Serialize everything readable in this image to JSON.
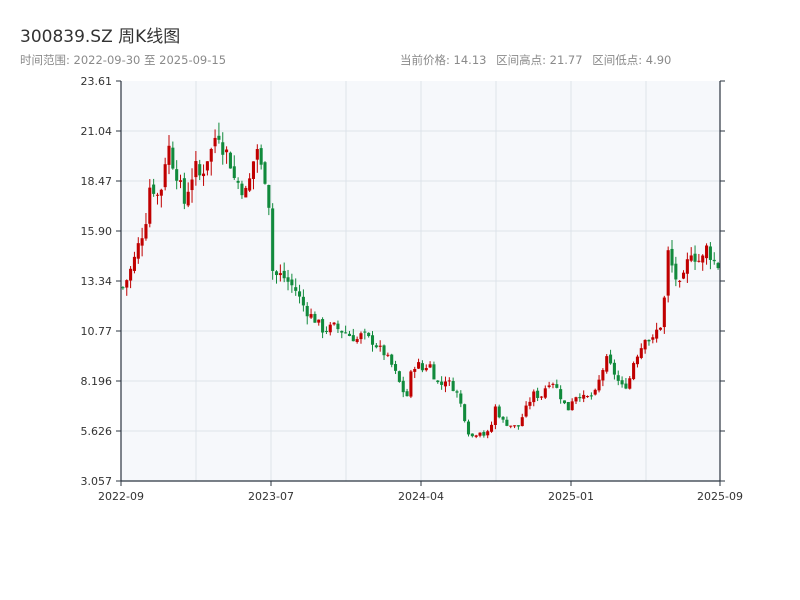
{
  "header": {
    "title": "300839.SZ 周K线图",
    "range_label": "时间范围: 2022-09-30 至 2025-09-15",
    "current_label": "当前价格: 14.13",
    "high_label": "区间高点: 21.77",
    "low_label": "区间低点: 4.90"
  },
  "colors": {
    "up": "#c00000",
    "down": "#118a3c",
    "plot_bg": "#f6f8fb",
    "grid": "#dde3ea",
    "axis": "#2b3440"
  },
  "chart_data": {
    "type": "candlestick",
    "title": "300839.SZ 周K线图",
    "xlabel": "",
    "ylabel": "",
    "ylim": [
      3.057,
      23.61
    ],
    "y_ticks": [
      "23.61",
      "21.04",
      "18.47",
      "15.90",
      "13.34",
      "10.77",
      "8.196",
      "5.626",
      "3.057"
    ],
    "x_ticks": [
      "2022-09",
      "2023-07",
      "2024-04",
      "2025-01",
      "2025-09"
    ],
    "grid": true,
    "date_range": [
      "2022-09-30",
      "2025-09-15"
    ],
    "current_price": 14.13,
    "period_high": 21.77,
    "period_low": 4.9,
    "close_series": [
      13.0,
      13.6,
      14.4,
      15.4,
      16.2,
      18.6,
      17.6,
      18.2,
      20.5,
      19.4,
      18.6,
      17.3,
      18.4,
      19.2,
      18.6,
      19.6,
      20.1,
      21.2,
      20.2,
      19.8,
      18.6,
      18.3,
      17.8,
      18.7,
      20.4,
      18.9,
      18.5,
      13.5,
      13.7,
      13.5,
      13.2,
      12.9,
      12.3,
      11.8,
      11.5,
      11.2,
      10.8,
      10.9,
      11.0,
      10.8,
      10.7,
      10.5,
      10.3,
      10.6,
      10.4,
      10.2,
      9.9,
      9.6,
      9.2,
      8.6,
      7.9,
      7.3,
      8.9,
      9.1,
      8.7,
      9.2,
      8.4,
      7.9,
      8.3,
      8.0,
      7.6,
      6.8,
      5.6,
      5.3,
      5.7,
      5.4,
      5.6,
      6.9,
      6.2,
      6.0,
      5.9,
      5.8,
      6.5,
      7.1,
      7.6,
      7.3,
      7.9,
      8.3,
      7.8,
      7.2,
      6.7,
      7.4,
      7.5,
      7.3,
      7.4,
      7.6,
      8.6,
      9.3,
      8.8,
      8.2,
      7.8,
      8.2,
      9.4,
      9.8,
      10.6,
      10.1,
      10.8,
      11.2,
      14.8,
      13.8,
      13.0,
      13.6,
      15.0,
      14.5,
      14.3,
      15.1,
      14.4,
      14.13
    ]
  }
}
